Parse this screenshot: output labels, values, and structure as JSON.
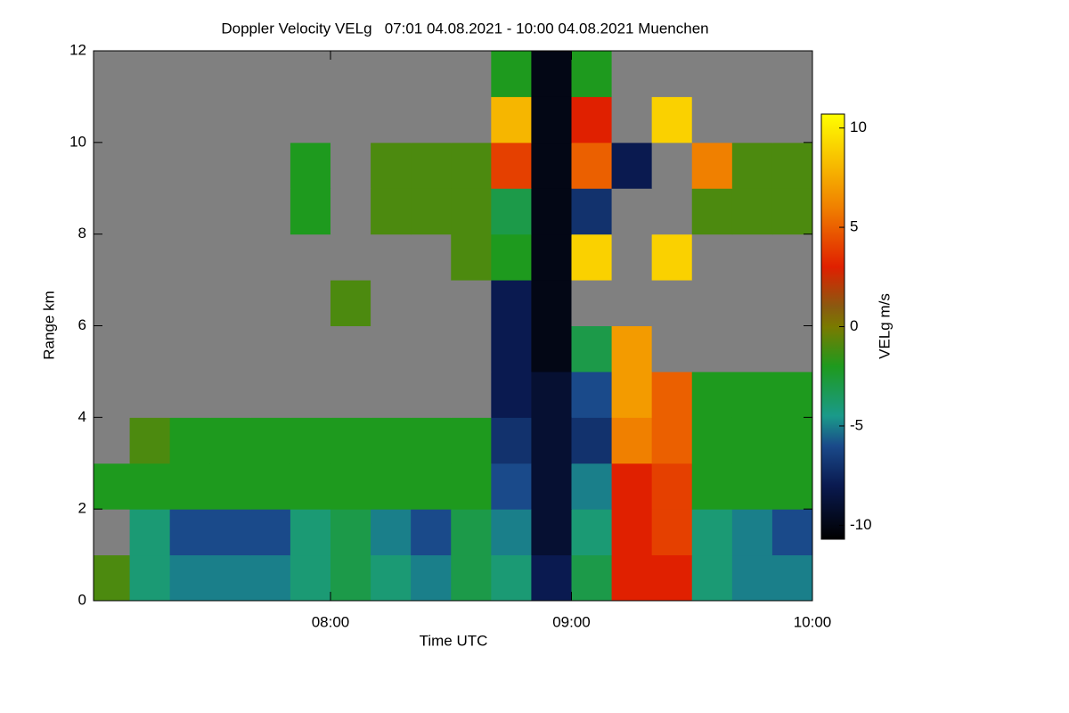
{
  "chart_data": {
    "type": "heatmap",
    "title": "Doppler Velocity VELg   07:01 04.08.2021 - 10:00 04.08.2021 Muenchen",
    "x_label": "Time UTC",
    "y_label": "Range km",
    "colorbar_label": "VELg m/s",
    "x_edges": [
      7.0167,
      7.1667,
      7.3333,
      7.5,
      7.6667,
      7.8333,
      8,
      8.1667,
      8.3333,
      8.5,
      8.6667,
      8.8333,
      9,
      9.1667,
      9.3333,
      9.5,
      9.6667,
      9.8333,
      10
    ],
    "y_edges": [
      0,
      1,
      2,
      3,
      4,
      5,
      6,
      7,
      8,
      9,
      10,
      11,
      12
    ],
    "z": [
      [
        -1,
        -4,
        -5,
        -5,
        -5,
        -4,
        -3,
        -4,
        -5,
        -3,
        -4,
        -8,
        -3,
        3,
        3,
        -4,
        -5,
        -5
      ],
      [
        null,
        -4,
        -6,
        -6,
        -6,
        -4,
        -3,
        -5,
        -6,
        -3,
        -5,
        -9,
        -4,
        3,
        4,
        -4,
        -5,
        -6
      ],
      [
        -2,
        -2,
        -2,
        -2,
        -2,
        -2,
        -2,
        -2,
        -2,
        -2,
        -6,
        -9,
        -5,
        3,
        4,
        -2,
        -2,
        -2
      ],
      [
        null,
        -1,
        -2,
        -2,
        -2,
        -2,
        -2,
        -2,
        -2,
        -2,
        -7,
        -9,
        -7,
        6,
        5,
        -2,
        -2,
        -2
      ],
      [
        null,
        null,
        null,
        null,
        null,
        null,
        null,
        null,
        null,
        null,
        -8,
        -9,
        -6,
        7,
        5,
        -2,
        -2,
        -2
      ],
      [
        null,
        null,
        null,
        null,
        null,
        null,
        null,
        null,
        null,
        null,
        -8,
        -10,
        -3,
        7,
        null,
        null,
        null,
        null
      ],
      [
        null,
        null,
        null,
        null,
        null,
        null,
        -1,
        null,
        null,
        null,
        -8,
        -10,
        null,
        null,
        null,
        null,
        null,
        null
      ],
      [
        null,
        null,
        null,
        null,
        null,
        null,
        null,
        null,
        null,
        -1,
        -2,
        -10,
        9,
        null,
        9,
        null,
        null,
        null
      ],
      [
        null,
        null,
        null,
        null,
        null,
        -2,
        null,
        -1,
        -1,
        -1,
        -3,
        -10,
        -7,
        null,
        null,
        -1,
        -1,
        -1
      ],
      [
        null,
        null,
        null,
        null,
        null,
        -2,
        null,
        -1,
        -1,
        -1,
        4,
        -10,
        5,
        -8,
        null,
        6,
        -1,
        -1
      ],
      [
        null,
        null,
        null,
        null,
        null,
        null,
        null,
        null,
        null,
        null,
        8,
        -10,
        3,
        null,
        9,
        null,
        null,
        null
      ],
      [
        null,
        null,
        null,
        null,
        null,
        null,
        null,
        null,
        null,
        null,
        -2,
        -10,
        -2,
        null,
        null,
        null,
        null,
        null
      ]
    ],
    "xlim": [
      7.0167,
      10
    ],
    "ylim": [
      0,
      12
    ],
    "xticks": [
      {
        "value": 8,
        "label": "08:00"
      },
      {
        "value": 9,
        "label": "09:00"
      },
      {
        "value": 10,
        "label": "10:00"
      }
    ],
    "yticks": [
      0,
      2,
      4,
      6,
      8,
      10,
      12
    ],
    "clim": [
      -10.7,
      10.7
    ],
    "cticks": [
      10,
      5,
      0,
      -5,
      -10
    ],
    "colorscale": [
      [
        -10.7,
        "#000000"
      ],
      [
        -8,
        "#0a1a50"
      ],
      [
        -6,
        "#1a4a8a"
      ],
      [
        -4.5,
        "#1a9a8a"
      ],
      [
        -2,
        "#1e9a1e"
      ],
      [
        0,
        "#7a7a00"
      ],
      [
        1,
        "#8a5a10"
      ],
      [
        3,
        "#e02000"
      ],
      [
        6,
        "#f08000"
      ],
      [
        10.7,
        "#ffff00"
      ]
    ],
    "null_color": "#808080"
  }
}
